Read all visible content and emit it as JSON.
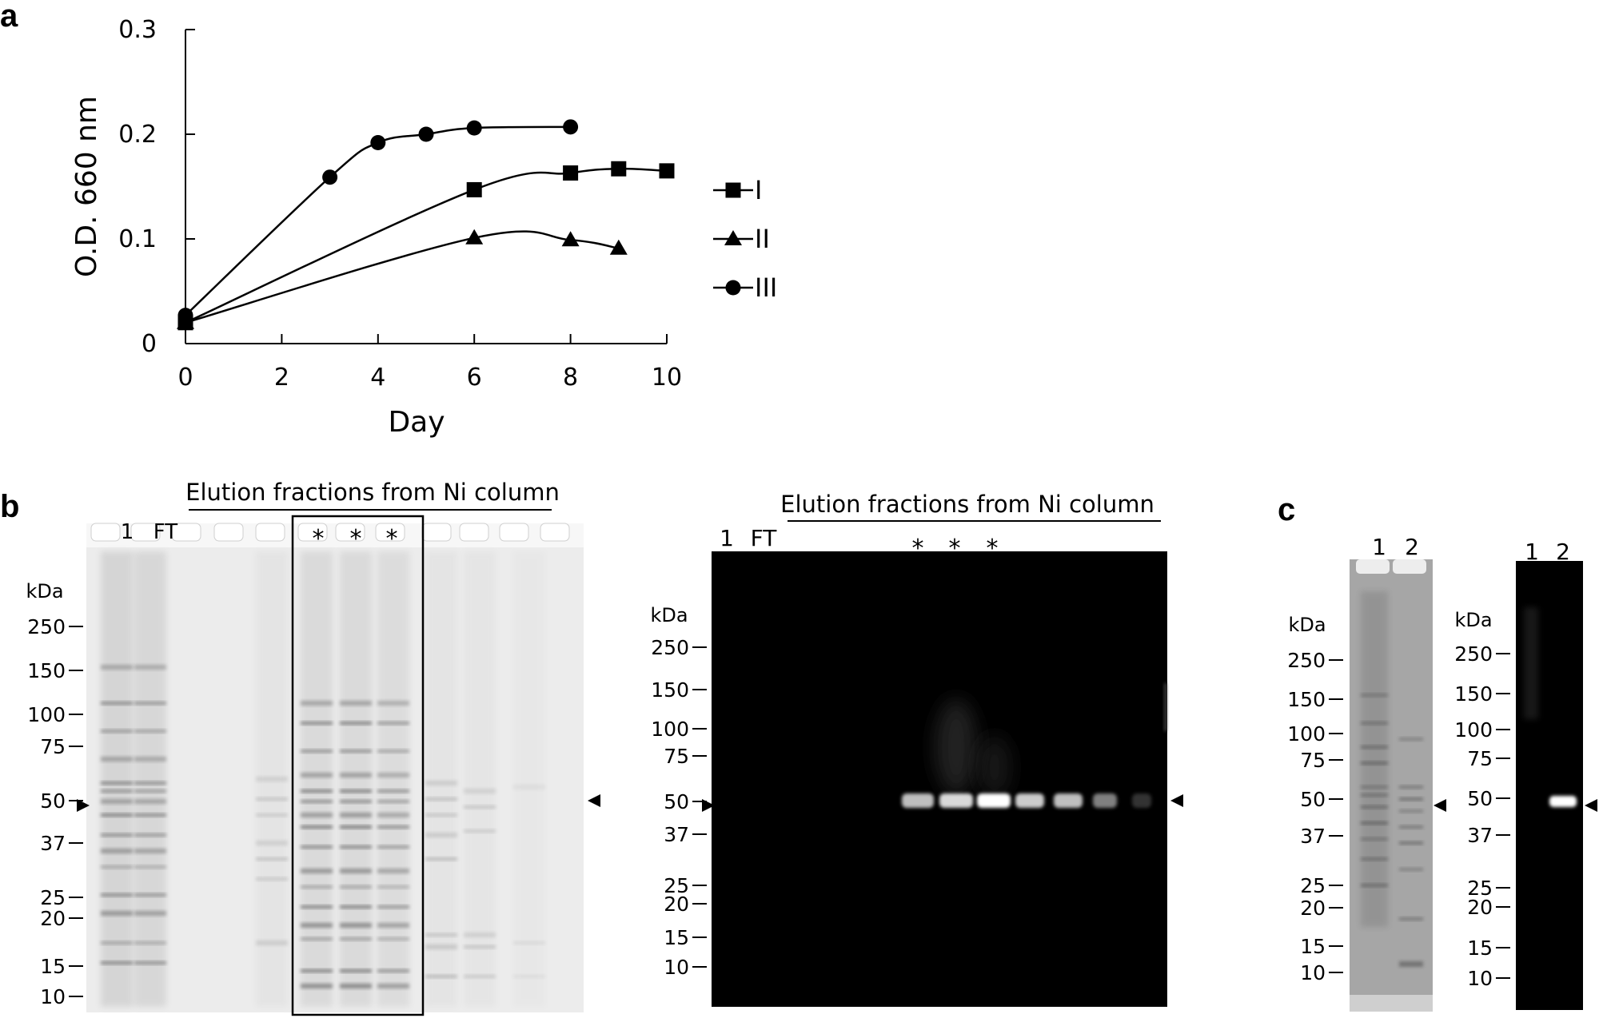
{
  "panels": {
    "a": {
      "letter": "a",
      "chart_data": {
        "type": "line",
        "xlabel": "Day",
        "ylabel": "O.D. 660 nm",
        "xlim": [
          0,
          10
        ],
        "ylim": [
          0,
          0.3
        ],
        "x_ticks": [
          "0",
          "2",
          "4",
          "6",
          "8",
          "10"
        ],
        "y_ticks": [
          "0",
          "0.1",
          "0.2",
          "0.3"
        ],
        "legend_position": "right",
        "series": [
          {
            "name": "I",
            "marker": "square",
            "x": [
              0,
              6,
              8,
              9,
              10
            ],
            "y": [
              0.02,
              0.147,
              0.163,
              0.167,
              0.165
            ]
          },
          {
            "name": "II",
            "marker": "triangle",
            "x": [
              0,
              6,
              8,
              9
            ],
            "y": [
              0.02,
              0.101,
              0.099,
              0.091
            ]
          },
          {
            "name": "III",
            "marker": "circle",
            "x": [
              0,
              3,
              4,
              5,
              6,
              8
            ],
            "y": [
              0.027,
              0.159,
              0.192,
              0.2,
              0.206,
              0.207
            ]
          }
        ]
      }
    },
    "b": {
      "letter": "b",
      "gel": {
        "title": "Elution fractions from Ni column",
        "lane_labels": [
          "1",
          "FT"
        ],
        "fraction_marks": [
          "*",
          "*",
          "*"
        ],
        "kda_label": "kDa",
        "markers": [
          "250",
          "150",
          "100",
          "75",
          "50",
          "37",
          "25",
          "20",
          "15",
          "10"
        ]
      },
      "blot": {
        "title": "Elution fractions from Ni column",
        "lane_labels": [
          "1",
          "FT"
        ],
        "fraction_marks": [
          "*",
          "*",
          "*"
        ],
        "kda_label": "kDa",
        "markers": [
          "250",
          "150",
          "100",
          "75",
          "50",
          "37",
          "25",
          "20",
          "15",
          "10"
        ]
      }
    },
    "c": {
      "letter": "c",
      "gel": {
        "lane_labels": [
          "1",
          "2"
        ],
        "kda_label": "kDa",
        "markers": [
          "250",
          "150",
          "100",
          "75",
          "50",
          "37",
          "25",
          "20",
          "15",
          "10"
        ]
      },
      "blot": {
        "lane_labels": [
          "1",
          "2"
        ],
        "kda_label": "kDa",
        "markers": [
          "250",
          "150",
          "100",
          "75",
          "50",
          "37",
          "25",
          "20",
          "15",
          "10"
        ]
      }
    }
  }
}
